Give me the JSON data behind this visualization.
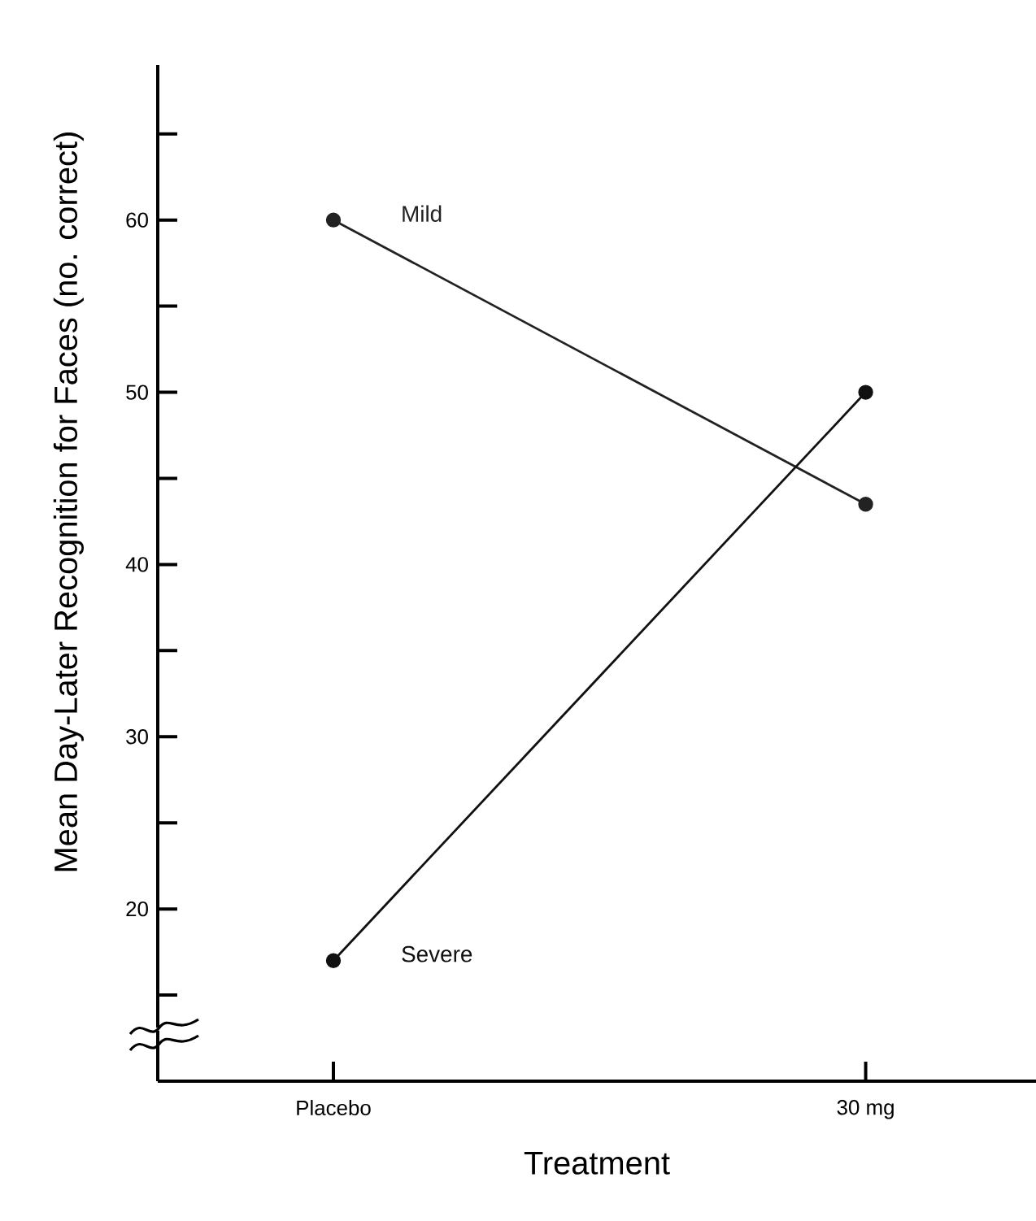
{
  "chart_data": {
    "type": "line",
    "xlabel": "Treatment",
    "ylabel": "Mean Day-Later Recognition for Faces (no. correct)",
    "categories": [
      "Placebo",
      "30 mg"
    ],
    "series": [
      {
        "name": "Mild",
        "color": "#222222",
        "values": [
          60,
          43.5
        ]
      },
      {
        "name": "Severe",
        "color": "#111111",
        "values": [
          17,
          50
        ]
      }
    ],
    "ylim": [
      10,
      69
    ],
    "yticks": [
      {
        "value": 15,
        "label": null
      },
      20,
      {
        "value": 25,
        "label": null
      },
      30,
      {
        "value": 35,
        "label": null
      },
      40,
      {
        "value": 45,
        "label": null
      },
      50,
      {
        "value": 55,
        "label": null
      },
      60,
      {
        "value": 65,
        "label": null
      }
    ],
    "grid": false,
    "legend": false,
    "line_style": "solid",
    "marker": "circle"
  }
}
